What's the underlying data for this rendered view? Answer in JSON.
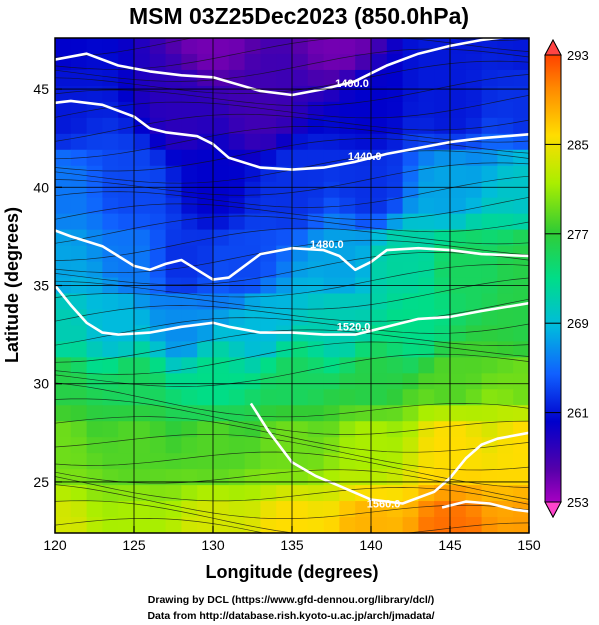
{
  "chart_data": {
    "type": "heatmap",
    "title": "MSM 03Z25Dec2023 (850.0hPa)",
    "xlabel": "Longitude (degrees)",
    "ylabel": "Latitude  (degrees)",
    "xlim": [
      120,
      150
    ],
    "ylim": [
      22.4,
      47.6
    ],
    "x_ticks": [
      120,
      125,
      130,
      135,
      140,
      145,
      150
    ],
    "y_ticks": [
      25,
      30,
      35,
      40,
      45
    ],
    "colorbar": {
      "range": [
        253,
        293
      ],
      "ticks": [
        253,
        261,
        269,
        277,
        285,
        293
      ],
      "unit": ""
    },
    "contour_labels": [
      {
        "text": "1400.0",
        "lon": 138.8,
        "lat": 45.1
      },
      {
        "text": "1440.0",
        "lon": 139.6,
        "lat": 41.4
      },
      {
        "text": "1480.0",
        "lon": 137.2,
        "lat": 36.9
      },
      {
        "text": "1520.0",
        "lon": 138.9,
        "lat": 32.7
      },
      {
        "text": "1560.0",
        "lon": 140.8,
        "lat": 23.7
      }
    ],
    "contours": [
      {
        "level": 1400,
        "points": [
          [
            120,
            46.5
          ],
          [
            122,
            46.8
          ],
          [
            124,
            46.2
          ],
          [
            126,
            45.9
          ],
          [
            128,
            45.7
          ],
          [
            130,
            45.6
          ],
          [
            133,
            44.9
          ],
          [
            135,
            44.7
          ],
          [
            137,
            45.0
          ],
          [
            139,
            45.4
          ],
          [
            141,
            46.2
          ],
          [
            143,
            46.8
          ],
          [
            145,
            47.2
          ],
          [
            147,
            47.5
          ],
          [
            150,
            47.8
          ]
        ]
      },
      {
        "level": 1440,
        "points": [
          [
            120,
            44.3
          ],
          [
            121,
            44.4
          ],
          [
            123,
            44.2
          ],
          [
            125,
            43.6
          ],
          [
            126,
            43.0
          ],
          [
            127,
            42.8
          ],
          [
            129,
            42.6
          ],
          [
            130,
            42.2
          ],
          [
            131,
            41.5
          ],
          [
            133,
            41.0
          ],
          [
            135,
            40.9
          ],
          [
            137,
            41.0
          ],
          [
            139,
            41.3
          ],
          [
            141,
            41.7
          ],
          [
            143,
            42.0
          ],
          [
            145,
            42.3
          ],
          [
            147,
            42.5
          ],
          [
            150,
            42.7
          ]
        ]
      },
      {
        "level": 1480,
        "points": [
          [
            120,
            37.8
          ],
          [
            121,
            37.5
          ],
          [
            123,
            37.0
          ],
          [
            124,
            36.5
          ],
          [
            125,
            36.0
          ],
          [
            126,
            35.8
          ],
          [
            127,
            36.1
          ],
          [
            128,
            36.3
          ],
          [
            129,
            35.8
          ],
          [
            130,
            35.3
          ],
          [
            131,
            35.4
          ],
          [
            133,
            36.6
          ],
          [
            135,
            36.9
          ],
          [
            137,
            36.8
          ],
          [
            138,
            36.5
          ],
          [
            139,
            35.8
          ],
          [
            140,
            36.2
          ],
          [
            141,
            36.8
          ],
          [
            143,
            36.9
          ],
          [
            145,
            36.8
          ],
          [
            147,
            36.6
          ],
          [
            150,
            36.5
          ]
        ]
      },
      {
        "level": 1520,
        "points": [
          [
            120,
            35.0
          ],
          [
            121,
            34.0
          ],
          [
            122,
            33.1
          ],
          [
            123,
            32.6
          ],
          [
            124,
            32.5
          ],
          [
            126,
            32.6
          ],
          [
            128,
            32.9
          ],
          [
            130,
            33.1
          ],
          [
            131,
            32.9
          ],
          [
            133,
            32.6
          ],
          [
            135,
            32.6
          ],
          [
            137,
            32.5
          ],
          [
            139,
            32.5
          ],
          [
            141,
            32.9
          ],
          [
            143,
            33.3
          ],
          [
            145,
            33.4
          ],
          [
            147,
            33.7
          ],
          [
            150,
            34.1
          ]
        ]
      },
      {
        "level": 1560,
        "points": [
          [
            132.4,
            29.0
          ],
          [
            133.5,
            27.6
          ],
          [
            135,
            26.0
          ],
          [
            136.5,
            25.3
          ],
          [
            138,
            24.8
          ],
          [
            140,
            24.1
          ],
          [
            142,
            23.9
          ],
          [
            144,
            24.5
          ],
          [
            145,
            25.2
          ],
          [
            146,
            26.2
          ],
          [
            147,
            26.9
          ],
          [
            148,
            27.2
          ],
          [
            150,
            27.5
          ]
        ]
      },
      {
        "level": 1560,
        "points": [
          [
            144.5,
            23.7
          ],
          [
            146,
            24.0
          ],
          [
            147.5,
            23.9
          ],
          [
            149,
            23.6
          ],
          [
            150,
            23.5
          ]
        ]
      }
    ],
    "temperature_keypoints": [
      {
        "lon": 120,
        "lat": 47.6,
        "t": 261
      },
      {
        "lon": 130,
        "lat": 47.6,
        "t": 256
      },
      {
        "lon": 138,
        "lat": 47.6,
        "t": 256
      },
      {
        "lon": 145,
        "lat": 47.6,
        "t": 262
      },
      {
        "lon": 150,
        "lat": 47.6,
        "t": 262
      },
      {
        "lon": 120,
        "lat": 44,
        "t": 262
      },
      {
        "lon": 128,
        "lat": 44,
        "t": 259
      },
      {
        "lon": 133,
        "lat": 44,
        "t": 258
      },
      {
        "lon": 140,
        "lat": 44,
        "t": 261
      },
      {
        "lon": 145,
        "lat": 44,
        "t": 262
      },
      {
        "lon": 150,
        "lat": 44,
        "t": 263
      },
      {
        "lon": 120,
        "lat": 40,
        "t": 266
      },
      {
        "lon": 125,
        "lat": 40,
        "t": 264
      },
      {
        "lon": 130,
        "lat": 40,
        "t": 261
      },
      {
        "lon": 135,
        "lat": 40,
        "t": 263
      },
      {
        "lon": 140,
        "lat": 40,
        "t": 263
      },
      {
        "lon": 145,
        "lat": 40,
        "t": 268
      },
      {
        "lon": 150,
        "lat": 40,
        "t": 270
      },
      {
        "lon": 120,
        "lat": 36,
        "t": 268
      },
      {
        "lon": 125,
        "lat": 36,
        "t": 266
      },
      {
        "lon": 128,
        "lat": 36,
        "t": 263
      },
      {
        "lon": 132,
        "lat": 36,
        "t": 264
      },
      {
        "lon": 138,
        "lat": 36,
        "t": 268
      },
      {
        "lon": 142,
        "lat": 36,
        "t": 272
      },
      {
        "lon": 146,
        "lat": 36,
        "t": 275
      },
      {
        "lon": 150,
        "lat": 36,
        "t": 276
      },
      {
        "lon": 120,
        "lat": 33,
        "t": 271
      },
      {
        "lon": 124,
        "lat": 33,
        "t": 269
      },
      {
        "lon": 128,
        "lat": 33,
        "t": 267
      },
      {
        "lon": 133,
        "lat": 33,
        "t": 269
      },
      {
        "lon": 138,
        "lat": 33,
        "t": 271
      },
      {
        "lon": 143,
        "lat": 33,
        "t": 273
      },
      {
        "lon": 150,
        "lat": 33,
        "t": 276
      },
      {
        "lon": 120,
        "lat": 30,
        "t": 276
      },
      {
        "lon": 125,
        "lat": 30,
        "t": 275
      },
      {
        "lon": 130,
        "lat": 30,
        "t": 273
      },
      {
        "lon": 135,
        "lat": 30,
        "t": 275
      },
      {
        "lon": 140,
        "lat": 30,
        "t": 276
      },
      {
        "lon": 145,
        "lat": 30,
        "t": 278
      },
      {
        "lon": 150,
        "lat": 30,
        "t": 279
      },
      {
        "lon": 120,
        "lat": 27,
        "t": 279
      },
      {
        "lon": 125,
        "lat": 27,
        "t": 278
      },
      {
        "lon": 130,
        "lat": 27,
        "t": 278
      },
      {
        "lon": 135,
        "lat": 27,
        "t": 279
      },
      {
        "lon": 140,
        "lat": 27,
        "t": 281
      },
      {
        "lon": 145,
        "lat": 27,
        "t": 285
      },
      {
        "lon": 150,
        "lat": 27,
        "t": 285
      },
      {
        "lon": 120,
        "lat": 22.4,
        "t": 283
      },
      {
        "lon": 125,
        "lat": 22.4,
        "t": 281
      },
      {
        "lon": 130,
        "lat": 22.4,
        "t": 283
      },
      {
        "lon": 135,
        "lat": 22.4,
        "t": 285
      },
      {
        "lon": 140,
        "lat": 22.4,
        "t": 287
      },
      {
        "lon": 145,
        "lat": 22.4,
        "t": 290
      },
      {
        "lon": 150,
        "lat": 22.4,
        "t": 288
      }
    ],
    "colormap": [
      "#cc00cc",
      "#5500aa",
      "#0000cc",
      "#1060ff",
      "#00bbdd",
      "#00dd88",
      "#33cc33",
      "#aaee00",
      "#ffdd00",
      "#ff8800",
      "#ff2200"
    ],
    "footer_line1": "Drawing by DCL (https://www.gfd-dennou.org/library/dcl/)",
    "footer_line2": "Data from http://database.rish.kyoto-u.ac.jp/arch/jmadata/"
  }
}
